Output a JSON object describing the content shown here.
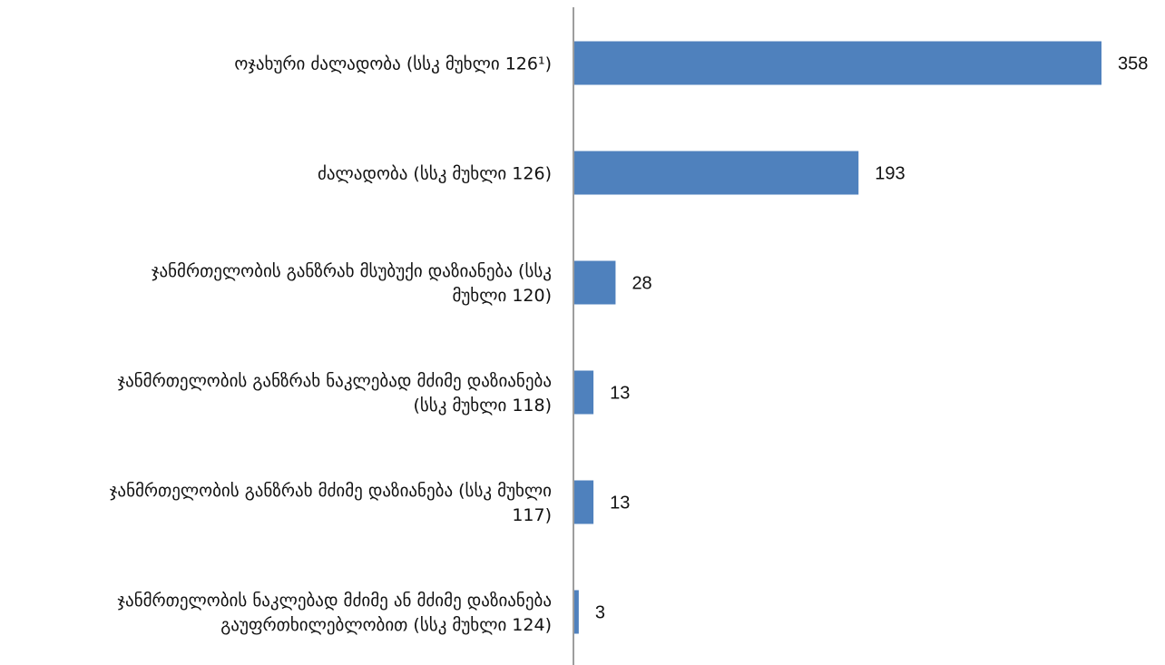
{
  "chart_data": {
    "type": "bar",
    "orientation": "horizontal",
    "categories": [
      [
        "ოჯახური ძალადობა (სსკ მუხლი 126¹)"
      ],
      [
        "ძალადობა (სსკ მუხლი 126)"
      ],
      [
        "ჯანმრთელობის განზრახ მსუბუქი დაზიანება (სსკ",
        "მუხლი 120)"
      ],
      [
        "ჯანმრთელობის განზრახ ნაკლებად მძიმე დაზიანება",
        "(სსკ მუხლი 118)"
      ],
      [
        "ჯანმრთელობის განზრახ მძიმე დაზიანება (სსკ მუხლი",
        "117)"
      ],
      [
        "ჯანმრთელობის ნაკლებად მძიმე ან მძიმე დაზიანება",
        "გაუფრთხილებლობით (სსკ მუხლი 124)"
      ]
    ],
    "values": [
      358,
      193,
      28,
      13,
      13,
      3
    ],
    "value_labels": [
      "358",
      "193",
      "28",
      "13",
      "13",
      "3"
    ],
    "bar_color": "#4f81bd",
    "axis_color": "#7f7f7f",
    "grid": false,
    "legend": "none"
  }
}
